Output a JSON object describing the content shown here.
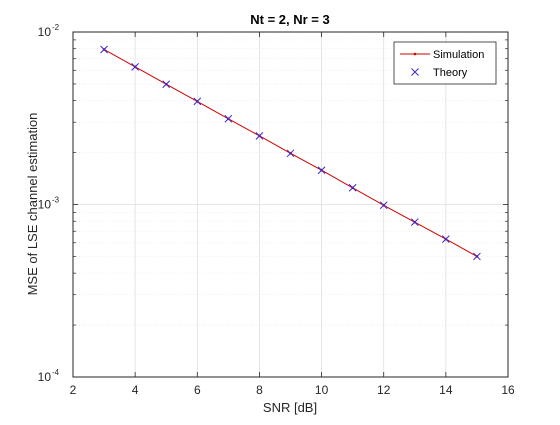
{
  "chart_data": {
    "type": "line",
    "title": "Nt = 2, Nr = 3",
    "xlabel": "SNR [dB]",
    "ylabel": "MSE of LSE channel estimation",
    "xlim": [
      2,
      16
    ],
    "ylim": [
      0.0001,
      0.01
    ],
    "yscale": "log",
    "grid": true,
    "minor_grid": true,
    "legend_position": "top-right",
    "x_ticks": [
      2,
      4,
      6,
      8,
      10,
      12,
      14,
      16
    ],
    "y_ticks": [
      {
        "value": 0.0001,
        "base": "10",
        "exponent": "-4"
      },
      {
        "value": 0.001,
        "base": "10",
        "exponent": "-3"
      },
      {
        "value": 0.01,
        "base": "10",
        "exponent": "-2"
      }
    ],
    "x": [
      3,
      4,
      5,
      6,
      7,
      8,
      9,
      10,
      11,
      12,
      13,
      14,
      15
    ],
    "series": [
      {
        "name": "Simulation",
        "color": "#d00000",
        "marker": "dot",
        "values": [
          0.00792,
          0.00628,
          0.00498,
          0.00396,
          0.00314,
          0.0025,
          0.00198,
          0.00158,
          0.00125,
          0.00099,
          0.00079,
          0.00063,
          0.0005
        ]
      },
      {
        "name": "Theory",
        "color": "#3a2ad0",
        "marker": "x",
        "values": [
          0.00792,
          0.00628,
          0.00498,
          0.00396,
          0.00314,
          0.0025,
          0.00198,
          0.00158,
          0.00125,
          0.00099,
          0.00079,
          0.00063,
          0.0005
        ]
      }
    ]
  }
}
